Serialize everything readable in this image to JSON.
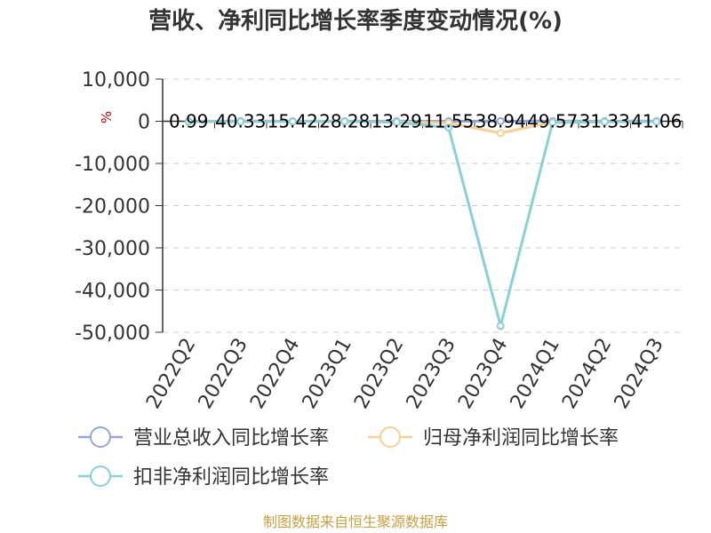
{
  "chart_data": {
    "type": "line",
    "title": "营收、净利同比增长率季度变动情况(%)",
    "unit_label": "%",
    "source_note": "制图数据来自恒生聚源数据库",
    "categories": [
      "2022Q2",
      "2022Q3",
      "2022Q4",
      "2023Q1",
      "2023Q2",
      "2023Q3",
      "2023Q4",
      "2024Q1",
      "2024Q2",
      "2024Q3"
    ],
    "ylim": [
      -50000,
      10000
    ],
    "yticks": [
      10000,
      0,
      -10000,
      -20000,
      -30000,
      -40000,
      -50000
    ],
    "ytick_labels": [
      "10,000",
      "0",
      "-10,000",
      "-20,000",
      "-30,000",
      "-40,000",
      "-50,000"
    ],
    "grid": true,
    "legend_position": "bottom",
    "series": [
      {
        "name": "营业总收入同比增长率",
        "color": "#8fa8d8",
        "values": [
          0.99,
          40.33,
          15.42,
          28.28,
          13.29,
          11.55,
          38.94,
          49.57,
          31.33,
          41.06
        ]
      },
      {
        "name": "归母净利润同比增长率",
        "color": "#f9d08f",
        "values": [
          -50,
          -80,
          -60,
          -40,
          -150,
          -400,
          -2800,
          -200,
          -100,
          -90
        ]
      },
      {
        "name": "扣非净利润同比增长率",
        "color": "#88d1d8",
        "values": [
          -60,
          -90,
          -70,
          -50,
          -200,
          -1500,
          -48500,
          -300,
          -120,
          -100
        ]
      }
    ],
    "data_labels": [
      "0.99",
      "40.33",
      "15.42",
      "28.28",
      "13.29",
      "11.55",
      "38.94",
      "49.57",
      "31.33",
      "41.06"
    ],
    "colors": {
      "title": "#333333",
      "unit": "#cc0000",
      "source": "#c8a040",
      "grid": "#cccccc",
      "axis": "#333333"
    }
  }
}
